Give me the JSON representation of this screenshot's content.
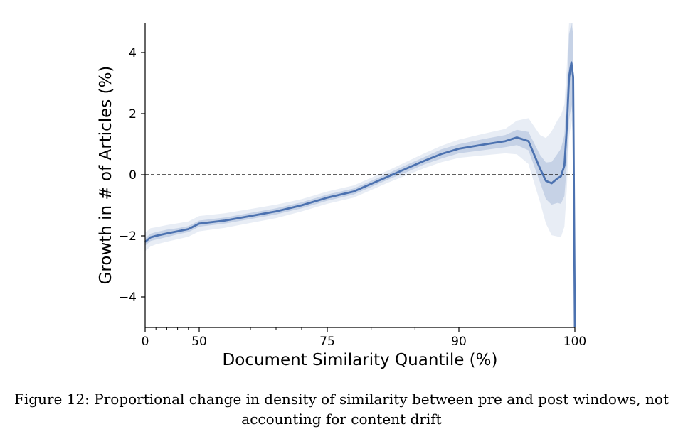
{
  "chart_data": {
    "type": "line",
    "xlabel": "Document Similarity Quantile (%)",
    "ylabel": "Growth in # of Articles (%)",
    "xticks": [
      0,
      50,
      75,
      90,
      100
    ],
    "xticks_minor": [
      10,
      20,
      30,
      40,
      60,
      65,
      70,
      80,
      85,
      95
    ],
    "yticks": [
      -4,
      -2,
      0,
      2,
      4
    ],
    "ylim": [
      -5,
      5
    ],
    "xlim": [
      0,
      100
    ],
    "reference_line": {
      "y": 0,
      "style": "dashed"
    },
    "colors": {
      "line": "#4c72b0",
      "band_inner": "#4c72b0",
      "band_outer": "#4c72b0"
    },
    "series": [
      {
        "x": [
          0,
          5,
          10,
          20,
          30,
          40,
          50,
          55,
          60,
          65,
          70,
          75,
          78,
          80,
          82,
          84,
          86,
          88,
          90,
          92,
          94,
          95,
          96,
          97,
          97.5,
          98,
          98.5,
          98.8,
          99.1,
          99.3,
          99.5,
          99.7,
          99.85,
          100
        ],
        "y": [
          -2.2,
          -2.05,
          -2.0,
          -1.92,
          -1.85,
          -1.78,
          -1.6,
          -1.5,
          -1.35,
          -1.2,
          -1.0,
          -0.75,
          -0.55,
          -0.3,
          -0.05,
          0.2,
          0.45,
          0.68,
          0.85,
          0.98,
          1.1,
          1.22,
          1.1,
          0.2,
          -0.2,
          -0.28,
          -0.12,
          -0.05,
          0.3,
          1.5,
          3.2,
          3.68,
          3.2,
          -5.0
        ],
        "inner_band": [
          0.12,
          0.12,
          0.12,
          0.12,
          0.1,
          0.1,
          0.1,
          0.1,
          0.1,
          0.1,
          0.1,
          0.1,
          0.1,
          0.1,
          0.1,
          0.12,
          0.12,
          0.15,
          0.15,
          0.18,
          0.2,
          0.25,
          0.3,
          0.45,
          0.6,
          0.7,
          0.8,
          0.9,
          1.0,
          1.2,
          1.4,
          1.4,
          1.4,
          0.5
        ],
        "outer_band": [
          0.3,
          0.3,
          0.28,
          0.27,
          0.26,
          0.25,
          0.25,
          0.24,
          0.23,
          0.22,
          0.2,
          0.2,
          0.2,
          0.2,
          0.2,
          0.22,
          0.24,
          0.27,
          0.3,
          0.35,
          0.4,
          0.55,
          0.75,
          1.1,
          1.4,
          1.7,
          1.9,
          2.0,
          2.0,
          2.0,
          2.0,
          1.9,
          1.9,
          1.0
        ]
      }
    ]
  },
  "caption": {
    "line1": "Figure 12: Proportional change in density of similarity between pre and post windows, not",
    "line2": "accounting for content drift"
  }
}
